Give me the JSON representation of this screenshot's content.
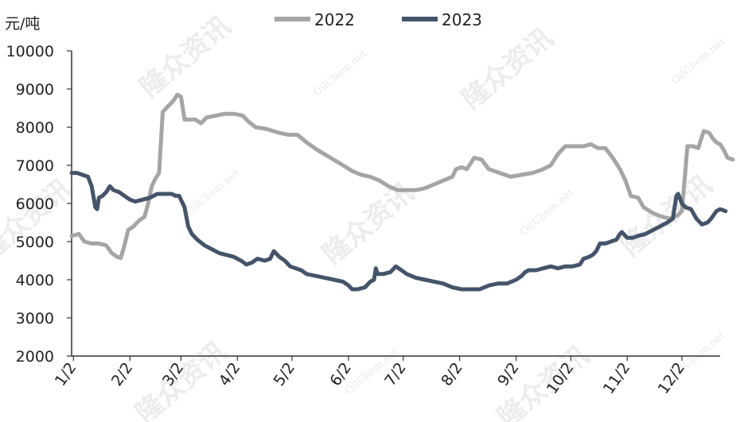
{
  "chart_data": {
    "type": "line",
    "unit_label": "元/吨",
    "ylim": [
      2000,
      10000
    ],
    "yticks": [
      2000,
      3000,
      4000,
      5000,
      6000,
      7000,
      8000,
      9000,
      10000
    ],
    "xlim": [
      1,
      357
    ],
    "xticks": [
      {
        "label": "1/2",
        "day": 2
      },
      {
        "label": "2/2",
        "day": 33
      },
      {
        "label": "3/2",
        "day": 61
      },
      {
        "label": "4/2",
        "day": 92
      },
      {
        "label": "5/2",
        "day": 122
      },
      {
        "label": "6/2",
        "day": 153
      },
      {
        "label": "7/2",
        "day": 183
      },
      {
        "label": "8/2",
        "day": 214
      },
      {
        "label": "9/2",
        "day": 245
      },
      {
        "label": "10/2",
        "day": 275
      },
      {
        "label": "11/2",
        "day": 306
      },
      {
        "label": "12/2",
        "day": 336
      }
    ],
    "grid": false,
    "legend_position": "top",
    "series": [
      {
        "name": "2022",
        "color": "#a5a5a5",
        "points": [
          [
            1,
            5150
          ],
          [
            5,
            5200
          ],
          [
            8,
            5000
          ],
          [
            12,
            4950
          ],
          [
            16,
            4950
          ],
          [
            20,
            4900
          ],
          [
            23,
            4700
          ],
          [
            26,
            4600
          ],
          [
            28,
            4570
          ],
          [
            30,
            4900
          ],
          [
            32,
            5300
          ],
          [
            35,
            5400
          ],
          [
            38,
            5550
          ],
          [
            41,
            5650
          ],
          [
            43,
            6000
          ],
          [
            45,
            6450
          ],
          [
            47,
            6650
          ],
          [
            49,
            6800
          ],
          [
            51,
            8400
          ],
          [
            54,
            8550
          ],
          [
            57,
            8700
          ],
          [
            59,
            8850
          ],
          [
            61,
            8800
          ],
          [
            63,
            8200
          ],
          [
            66,
            8200
          ],
          [
            69,
            8200
          ],
          [
            72,
            8100
          ],
          [
            75,
            8250
          ],
          [
            80,
            8300
          ],
          [
            85,
            8350
          ],
          [
            90,
            8350
          ],
          [
            95,
            8300
          ],
          [
            98,
            8150
          ],
          [
            102,
            8000
          ],
          [
            108,
            7950
          ],
          [
            115,
            7850
          ],
          [
            120,
            7800
          ],
          [
            125,
            7800
          ],
          [
            130,
            7600
          ],
          [
            136,
            7400
          ],
          [
            143,
            7200
          ],
          [
            150,
            7000
          ],
          [
            155,
            6850
          ],
          [
            160,
            6750
          ],
          [
            165,
            6700
          ],
          [
            170,
            6600
          ],
          [
            175,
            6450
          ],
          [
            180,
            6350
          ],
          [
            185,
            6350
          ],
          [
            190,
            6350
          ],
          [
            195,
            6400
          ],
          [
            200,
            6500
          ],
          [
            205,
            6600
          ],
          [
            210,
            6700
          ],
          [
            212,
            6900
          ],
          [
            215,
            6950
          ],
          [
            218,
            6900
          ],
          [
            222,
            7200
          ],
          [
            226,
            7150
          ],
          [
            230,
            6900
          ],
          [
            236,
            6800
          ],
          [
            242,
            6700
          ],
          [
            248,
            6750
          ],
          [
            254,
            6800
          ],
          [
            260,
            6900
          ],
          [
            264,
            7000
          ],
          [
            268,
            7300
          ],
          [
            272,
            7500
          ],
          [
            276,
            7500
          ],
          [
            282,
            7500
          ],
          [
            286,
            7550
          ],
          [
            290,
            7450
          ],
          [
            294,
            7450
          ],
          [
            298,
            7200
          ],
          [
            302,
            6900
          ],
          [
            305,
            6600
          ],
          [
            308,
            6200
          ],
          [
            312,
            6150
          ],
          [
            315,
            5900
          ],
          [
            320,
            5750
          ],
          [
            325,
            5650
          ],
          [
            330,
            5600
          ],
          [
            334,
            5700
          ],
          [
            336,
            5800
          ],
          [
            338,
            6900
          ],
          [
            339,
            7500
          ],
          [
            342,
            7500
          ],
          [
            345,
            7450
          ],
          [
            348,
            7900
          ],
          [
            351,
            7850
          ],
          [
            353,
            7700
          ],
          [
            355,
            7600
          ],
          [
            357,
            7550
          ],
          [
            359,
            7400
          ],
          [
            361,
            7200
          ],
          [
            364,
            7150
          ]
        ]
      },
      {
        "name": "2023",
        "color": "#44546a",
        "points": [
          [
            1,
            6800
          ],
          [
            4,
            6800
          ],
          [
            7,
            6750
          ],
          [
            10,
            6700
          ],
          [
            12,
            6450
          ],
          [
            14,
            5900
          ],
          [
            15,
            5850
          ],
          [
            16,
            6150
          ],
          [
            18,
            6200
          ],
          [
            20,
            6300
          ],
          [
            22,
            6450
          ],
          [
            24,
            6350
          ],
          [
            27,
            6300
          ],
          [
            30,
            6200
          ],
          [
            33,
            6100
          ],
          [
            36,
            6050
          ],
          [
            40,
            6100
          ],
          [
            44,
            6150
          ],
          [
            48,
            6250
          ],
          [
            52,
            6250
          ],
          [
            56,
            6250
          ],
          [
            58,
            6200
          ],
          [
            60,
            6200
          ],
          [
            63,
            5900
          ],
          [
            65,
            5400
          ],
          [
            67,
            5200
          ],
          [
            70,
            5050
          ],
          [
            74,
            4900
          ],
          [
            78,
            4800
          ],
          [
            82,
            4700
          ],
          [
            86,
            4650
          ],
          [
            90,
            4600
          ],
          [
            94,
            4500
          ],
          [
            97,
            4400
          ],
          [
            100,
            4450
          ],
          [
            103,
            4550
          ],
          [
            107,
            4500
          ],
          [
            110,
            4550
          ],
          [
            112,
            4750
          ],
          [
            115,
            4600
          ],
          [
            118,
            4500
          ],
          [
            121,
            4350
          ],
          [
            124,
            4300
          ],
          [
            127,
            4250
          ],
          [
            130,
            4150
          ],
          [
            135,
            4100
          ],
          [
            140,
            4050
          ],
          [
            145,
            4000
          ],
          [
            150,
            3950
          ],
          [
            153,
            3850
          ],
          [
            155,
            3750
          ],
          [
            158,
            3750
          ],
          [
            162,
            3800
          ],
          [
            165,
            3950
          ],
          [
            167,
            4000
          ],
          [
            168,
            4300
          ],
          [
            169,
            4150
          ],
          [
            172,
            4150
          ],
          [
            176,
            4200
          ],
          [
            179,
            4350
          ],
          [
            182,
            4250
          ],
          [
            185,
            4150
          ],
          [
            190,
            4050
          ],
          [
            195,
            4000
          ],
          [
            200,
            3950
          ],
          [
            205,
            3900
          ],
          [
            210,
            3800
          ],
          [
            215,
            3750
          ],
          [
            220,
            3750
          ],
          [
            225,
            3750
          ],
          [
            230,
            3850
          ],
          [
            235,
            3900
          ],
          [
            240,
            3900
          ],
          [
            245,
            4000
          ],
          [
            248,
            4100
          ],
          [
            250,
            4200
          ],
          [
            252,
            4250
          ],
          [
            256,
            4250
          ],
          [
            260,
            4300
          ],
          [
            264,
            4350
          ],
          [
            268,
            4300
          ],
          [
            272,
            4350
          ],
          [
            276,
            4350
          ],
          [
            280,
            4400
          ],
          [
            282,
            4550
          ],
          [
            285,
            4600
          ],
          [
            287,
            4650
          ],
          [
            289,
            4750
          ],
          [
            291,
            4950
          ],
          [
            294,
            4950
          ],
          [
            297,
            5000
          ],
          [
            300,
            5050
          ],
          [
            302,
            5200
          ],
          [
            303,
            5250
          ],
          [
            306,
            5100
          ],
          [
            309,
            5100
          ],
          [
            312,
            5150
          ],
          [
            316,
            5200
          ],
          [
            320,
            5300
          ],
          [
            324,
            5400
          ],
          [
            328,
            5500
          ],
          [
            331,
            5600
          ],
          [
            333,
            6200
          ],
          [
            334,
            6250
          ],
          [
            336,
            6000
          ],
          [
            338,
            5900
          ],
          [
            341,
            5850
          ],
          [
            344,
            5600
          ],
          [
            347,
            5450
          ],
          [
            350,
            5500
          ],
          [
            352,
            5600
          ],
          [
            355,
            5800
          ],
          [
            357,
            5850
          ],
          [
            360,
            5800
          ]
        ]
      }
    ]
  },
  "watermarks": [
    {
      "text": "隆众资讯",
      "kind": "cn"
    },
    {
      "text": "OilChem.net",
      "kind": "en"
    }
  ]
}
